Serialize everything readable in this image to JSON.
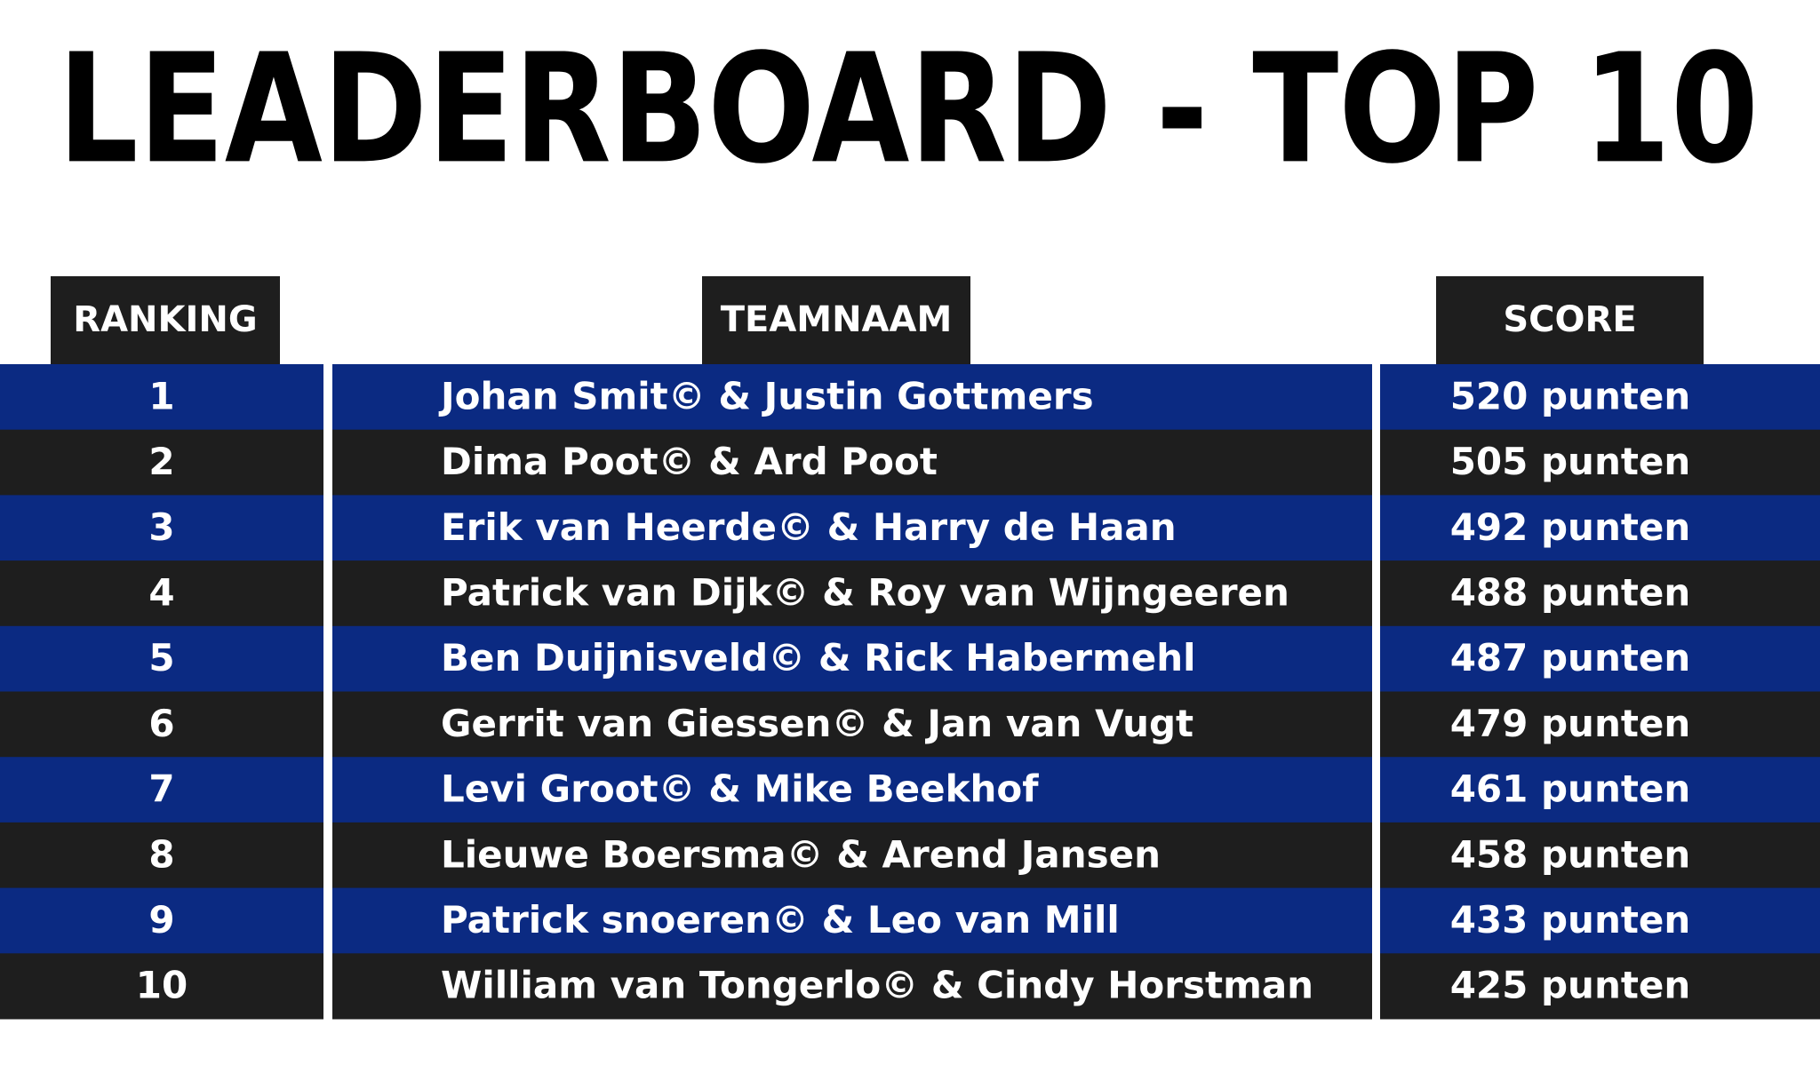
{
  "title": "LEADERBOARD - TOP 10",
  "table": {
    "headers": [
      "RANKING",
      "TEAMNAAM",
      "SCORE"
    ],
    "rows": [
      [
        "1",
        "Johan Smit© & Justin Gottmers",
        "520 punten"
      ],
      [
        "2",
        "Dima Poot© & Ard Poot",
        "505 punten"
      ],
      [
        "3",
        "Erik van Heerde© & Harry de Haan",
        "492 punten"
      ],
      [
        "4",
        "Patrick van Dijk© & Roy van Wijngeeren",
        "488 punten"
      ],
      [
        "5",
        "Ben Duijnisveld© & Rick Habermehl",
        "487 punten"
      ],
      [
        "6",
        "Gerrit van Giessen© & Jan van Vugt",
        "479 punten"
      ],
      [
        "7",
        "Levi Groot© & Mike Beekhof",
        "461 punten"
      ],
      [
        "8",
        "Lieuwe Boersma© & Arend Jansen",
        "458 punten"
      ],
      [
        "9",
        "Patrick snoeren© & Leo van Mill",
        "433 punten"
      ],
      [
        "10",
        "William van Tongerlo© & Cindy Horstman",
        "425 punten"
      ]
    ]
  }
}
